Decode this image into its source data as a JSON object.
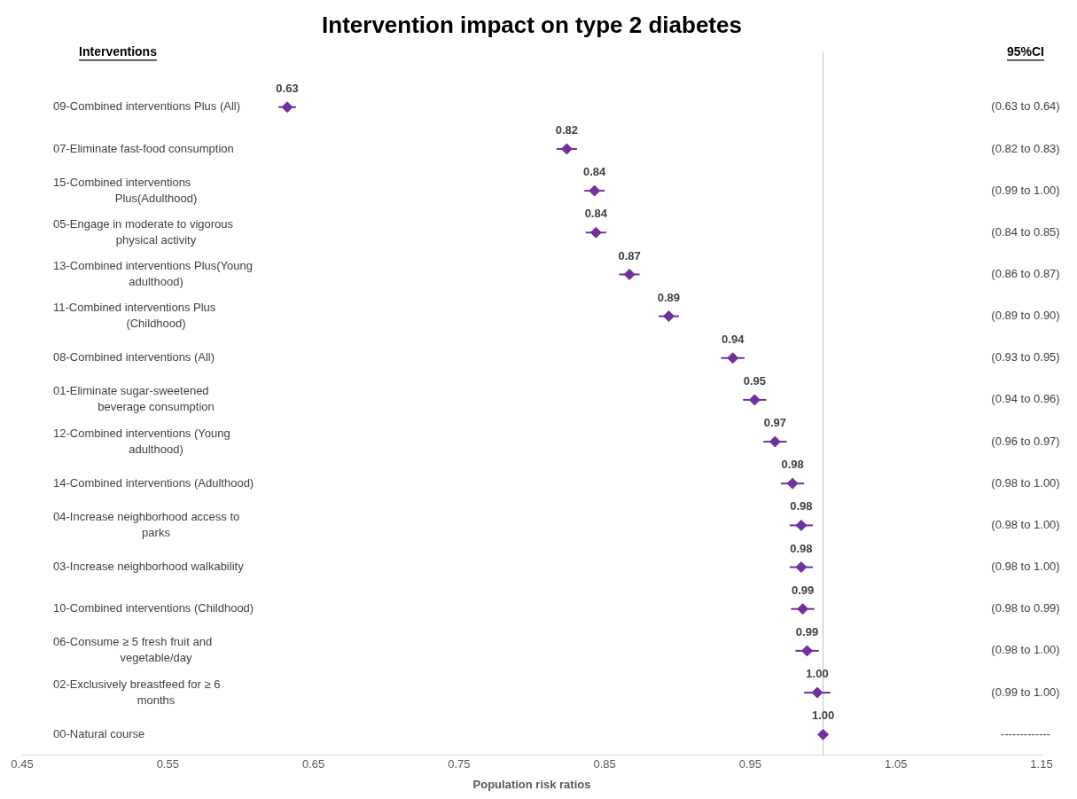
{
  "chart_data": {
    "type": "scatter",
    "orientation": "horizontal",
    "title": "Intervention impact on type 2 diabetes",
    "xlabel": "Population risk ratios",
    "ylabel": "Interventions",
    "y2label": "95%CI",
    "categories": [
      "09-Combined interventions Plus (All)",
      "07-Eliminate fast-food consumption",
      "15-Combined interventions Plus(Adulthood)",
      "05-Engage in moderate to vigorous physical activity",
      "13-Combined interventions Plus(Young adulthood)",
      "11-Combined interventions Plus (Childhood)",
      "08-Combined interventions (All)",
      "01-Eliminate sugar-sweetened beverage consumption",
      "12-Combined interventions (Young adulthood)",
      "14-Combined interventions (Adulthood)",
      "04-Increase neighborhood access to parks",
      "03-Increase neighborhood walkability",
      "10-Combined interventions (Childhood)",
      "06-Consume ≥ 5 fresh fruit and vegetable/day",
      "02-Exclusively breastfeed for ≥ 6 months",
      "00-Natural course"
    ],
    "values": [
      0.632,
      0.824,
      0.843,
      0.844,
      0.867,
      0.894,
      0.938,
      0.953,
      0.967,
      0.979,
      0.985,
      0.985,
      0.986,
      0.989,
      0.996,
      1.0
    ],
    "errors": [
      0.006,
      0.007,
      0.007,
      0.007,
      0.007,
      0.007,
      0.008,
      0.008,
      0.008,
      0.008,
      0.008,
      0.008,
      0.008,
      0.008,
      0.009,
      null
    ],
    "value_labels": [
      "0.63",
      "0.82",
      "0.84",
      "0.84",
      "0.87",
      "0.89",
      "0.94",
      "0.95",
      "0.97",
      "0.98",
      "0.98",
      "0.98",
      "0.99",
      "0.99",
      "1.00",
      "1.00"
    ],
    "annotations": [
      "(0.63 to 0.64)",
      "(0.82 to 0.83)",
      "(0.99 to 1.00)",
      "(0.84 to 0.85)",
      "(0.86 to 0.87)",
      "(0.89 to 0.90)",
      "(0.93 to 0.95)",
      "(0.94 to 0.96)",
      "(0.96 to 0.97)",
      "(0.98 to 1.00)",
      "(0.98 to 1.00)",
      "(0.98 to 1.00)",
      "(0.98 to 0.99)",
      "(0.98 to 1.00)",
      "(0.99 to 1.00)",
      "-------------"
    ],
    "color": "#7030a0",
    "marker": "diamond",
    "xlim": [
      0.45,
      1.15
    ],
    "xticks": [
      {
        "value": 0.45,
        "label": "0.45"
      },
      {
        "value": 0.55,
        "label": "0.55"
      },
      {
        "value": 0.65,
        "label": "0.65"
      },
      {
        "value": 0.75,
        "label": "0.75"
      },
      {
        "value": 0.85,
        "label": "0.85"
      },
      {
        "value": 0.95,
        "label": "0.95"
      },
      {
        "value": 1.05,
        "label": "1.05"
      },
      {
        "value": 1.15,
        "label": "1.15"
      }
    ],
    "ref_lines": [
      {
        "axis": "x",
        "value": 1,
        "color": "#bfbfbf"
      }
    ],
    "grid": false,
    "legend": false
  }
}
